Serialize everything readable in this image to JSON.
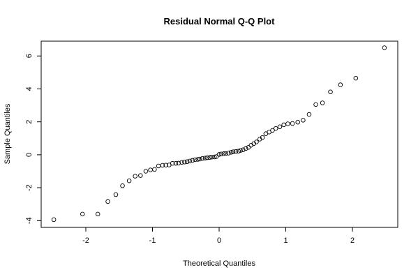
{
  "chart_data": {
    "type": "scatter",
    "title": "Residual Normal Q-Q Plot",
    "x_label": "Theoretical Quantiles",
    "y_label": "Sample Quantiles",
    "xlim": [
      -2.67,
      2.68
    ],
    "ylim": [
      -4.41,
      6.9
    ],
    "xticks": [
      -2,
      -1,
      0,
      1,
      2
    ],
    "yticks": [
      -4,
      -2,
      0,
      2,
      4,
      6
    ],
    "color": "#000000",
    "x": [
      -2.48,
      -2.05,
      -1.82,
      -1.67,
      -1.55,
      -1.45,
      -1.35,
      -1.26,
      -1.18,
      -1.1,
      -1.03,
      -0.97,
      -0.91,
      -0.85,
      -0.8,
      -0.75,
      -0.7,
      -0.65,
      -0.61,
      -0.56,
      -0.52,
      -0.48,
      -0.44,
      -0.4,
      -0.36,
      -0.32,
      -0.29,
      -0.25,
      -0.21,
      -0.18,
      -0.14,
      -0.11,
      -0.07,
      -0.04,
      0,
      0.03,
      0.07,
      0.1,
      0.14,
      0.18,
      0.21,
      0.25,
      0.29,
      0.32,
      0.36,
      0.4,
      0.44,
      0.48,
      0.52,
      0.56,
      0.61,
      0.65,
      0.7,
      0.75,
      0.8,
      0.85,
      0.91,
      0.97,
      1.03,
      1.1,
      1.18,
      1.26,
      1.35,
      1.45,
      1.55,
      1.67,
      1.82,
      2.05,
      2.48
    ],
    "values": [
      -3.94,
      -3.6,
      -3.6,
      -2.84,
      -2.42,
      -1.88,
      -1.58,
      -1.3,
      -1.26,
      -1.0,
      -0.92,
      -0.89,
      -0.68,
      -0.64,
      -0.63,
      -0.62,
      -0.52,
      -0.52,
      -0.51,
      -0.46,
      -0.44,
      -0.42,
      -0.38,
      -0.34,
      -0.3,
      -0.28,
      -0.26,
      -0.22,
      -0.2,
      -0.18,
      -0.16,
      -0.14,
      -0.13,
      -0.11,
      0.02,
      0.05,
      0.07,
      0.08,
      0.1,
      0.15,
      0.18,
      0.2,
      0.22,
      0.26,
      0.3,
      0.38,
      0.45,
      0.58,
      0.68,
      0.78,
      0.95,
      1.05,
      1.28,
      1.38,
      1.48,
      1.6,
      1.7,
      1.82,
      1.88,
      1.9,
      1.98,
      2.1,
      2.45,
      3.05,
      3.15,
      3.82,
      4.25,
      4.65,
      6.5
    ]
  }
}
